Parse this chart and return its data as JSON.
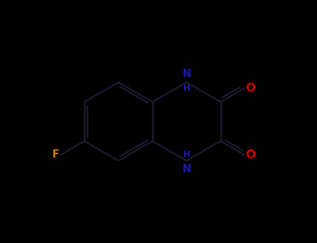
{
  "background_color": "#000000",
  "bond_color": "#1a1a2e",
  "bond_width": 1.8,
  "F_color": "#cc7700",
  "N_color": "#1a1aaa",
  "O_color": "#cc0000",
  "C_color": "#1a1a2e",
  "H_color": "#1a1aaa",
  "figsize": [
    4.55,
    3.5
  ],
  "dpi": 100,
  "xlim": [
    0,
    10
  ],
  "ylim": [
    0,
    8
  ]
}
